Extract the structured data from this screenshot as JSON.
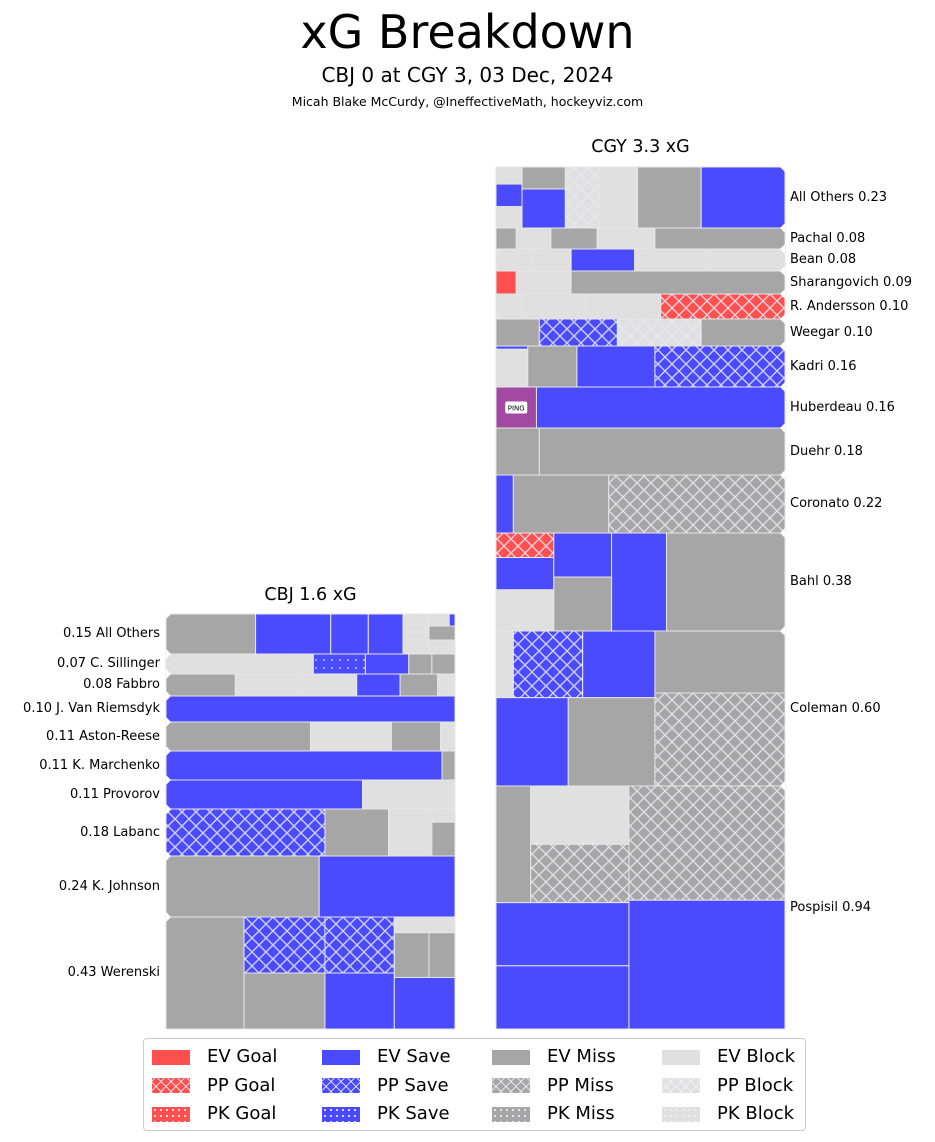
{
  "header": {
    "title": "xG Breakdown",
    "subtitle": "CBJ 0 at CGY 3, 03 Dec, 2024",
    "byline": "Micah Blake McCurdy, @IneffectiveMath, hockeyviz.com"
  },
  "colors": {
    "goal": "#ff5050",
    "save": "#4a4aff",
    "miss": "#a6a6a6",
    "block": "#e0e0e0",
    "penalty": "#a349a4",
    "divider": "#e6e6e6"
  },
  "chart_data": [
    {
      "type": "treemap",
      "team": "CGY",
      "title": "CGY 3.3 xG",
      "total_xg": 3.3,
      "label_side": "right",
      "players": [
        {
          "name": "All Others",
          "xg": 0.23,
          "label": "All Others 0.23"
        },
        {
          "name": "Pachal",
          "xg": 0.08,
          "label": "Pachal 0.08"
        },
        {
          "name": "Bean",
          "xg": 0.08,
          "label": "Bean 0.08"
        },
        {
          "name": "Sharangovich",
          "xg": 0.09,
          "label": "Sharangovich 0.09"
        },
        {
          "name": "R. Andersson",
          "xg": 0.1,
          "label": "R. Andersson 0.10"
        },
        {
          "name": "Weegar",
          "xg": 0.1,
          "label": "Weegar 0.10"
        },
        {
          "name": "Kadri",
          "xg": 0.16,
          "label": "Kadri 0.16"
        },
        {
          "name": "Huberdeau",
          "xg": 0.16,
          "label": "Huberdeau 0.16",
          "annotation": "PING"
        },
        {
          "name": "Duehr",
          "xg": 0.18,
          "label": "Duehr 0.18"
        },
        {
          "name": "Coronato",
          "xg": 0.22,
          "label": "Coronato 0.22"
        },
        {
          "name": "Bahl",
          "xg": 0.38,
          "label": "Bahl 0.38"
        },
        {
          "name": "Coleman",
          "xg": 0.6,
          "label": "Coleman 0.60"
        },
        {
          "name": "Pospisil",
          "xg": 0.94,
          "label": "Pospisil 0.94"
        }
      ]
    },
    {
      "type": "treemap",
      "team": "CBJ",
      "title": "CBJ 1.6 xG",
      "total_xg": 1.6,
      "label_side": "left",
      "players": [
        {
          "name": "All Others",
          "xg": 0.15,
          "label": "0.15 All Others"
        },
        {
          "name": "C. Sillinger",
          "xg": 0.07,
          "label": "0.07 C. Sillinger"
        },
        {
          "name": "Fabbro",
          "xg": 0.08,
          "label": "0.08 Fabbro"
        },
        {
          "name": "J. Van Riemsdyk",
          "xg": 0.1,
          "label": "0.10 J. Van Riemsdyk"
        },
        {
          "name": "Aston-Reese",
          "xg": 0.11,
          "label": "0.11 Aston-Reese"
        },
        {
          "name": "K. Marchenko",
          "xg": 0.11,
          "label": "0.11 K. Marchenko"
        },
        {
          "name": "Provorov",
          "xg": 0.11,
          "label": "0.11 Provorov"
        },
        {
          "name": "Labanc",
          "xg": 0.18,
          "label": "0.18 Labanc"
        },
        {
          "name": "K. Johnson",
          "xg": 0.24,
          "label": "0.24 K. Johnson"
        },
        {
          "name": "Werenski",
          "xg": 0.43,
          "label": "0.43 Werenski"
        }
      ]
    }
  ],
  "legend": {
    "items": [
      {
        "label": "EV Goal",
        "kind": "goal",
        "state": "EV"
      },
      {
        "label": "PP Goal",
        "kind": "goal",
        "state": "PP"
      },
      {
        "label": "PK Goal",
        "kind": "goal",
        "state": "PK"
      },
      {
        "label": "EV Save",
        "kind": "save",
        "state": "EV"
      },
      {
        "label": "PP Save",
        "kind": "save",
        "state": "PP"
      },
      {
        "label": "PK Save",
        "kind": "save",
        "state": "PK"
      },
      {
        "label": "EV Miss",
        "kind": "miss",
        "state": "EV"
      },
      {
        "label": "PP Miss",
        "kind": "miss",
        "state": "PP"
      },
      {
        "label": "PK Miss",
        "kind": "miss",
        "state": "PK"
      },
      {
        "label": "EV Block",
        "kind": "block",
        "state": "EV"
      },
      {
        "label": "PP Block",
        "kind": "block",
        "state": "PP"
      },
      {
        "label": "PK Block",
        "kind": "block",
        "state": "PK"
      }
    ]
  }
}
